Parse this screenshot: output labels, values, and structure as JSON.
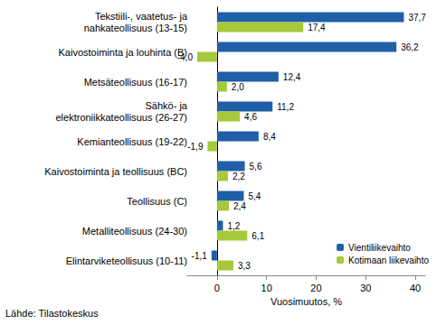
{
  "chart_data": {
    "type": "bar",
    "orientation": "horizontal",
    "categories": [
      "Tekstiili-, vaatetus- ja\nnahkateollisuus (13-15)",
      "Kaivostoiminta ja louhinta (B)",
      "Metsäteollisuus (16-17)",
      "Sähkö- ja\nelektroniikkateollisuus (26-27)",
      "Kemianteollisuus (19-22)",
      "Kaivostoiminta ja teollisuus (BC)",
      "Teollisuus (C)",
      "Metalliteollisuus (24-30)",
      "Elintarviketeollisuus (10-11)"
    ],
    "series": [
      {
        "name": "Vientiliikevaihto",
        "color": "#1f5fa8",
        "values": [
          37.7,
          36.2,
          12.4,
          11.2,
          8.4,
          5.6,
          5.4,
          1.2,
          -1.1
        ],
        "value_labels": [
          "37,7",
          "36,2",
          "12,4",
          "11,2",
          "8,4",
          "5,6",
          "5,4",
          "1,2",
          "-1,1"
        ]
      },
      {
        "name": "Kotimaan liikevaihto",
        "color": "#a5c93a",
        "values": [
          17.4,
          -4.0,
          2.0,
          4.6,
          -1.9,
          2.2,
          2.4,
          6.1,
          3.3
        ],
        "value_labels": [
          "17,4",
          "-4,0",
          "2,0",
          "4,6",
          "-1,9",
          "2,2",
          "2,4",
          "6,1",
          "3,3"
        ]
      }
    ],
    "x_label": "Vuosimuutos, %",
    "xlim": [
      -6,
      42
    ],
    "xticks": [
      0,
      10,
      20,
      30,
      40
    ],
    "grid": false,
    "legend": "lower right",
    "data_labels": true,
    "source": "Lähde: Tilastokeskus"
  }
}
